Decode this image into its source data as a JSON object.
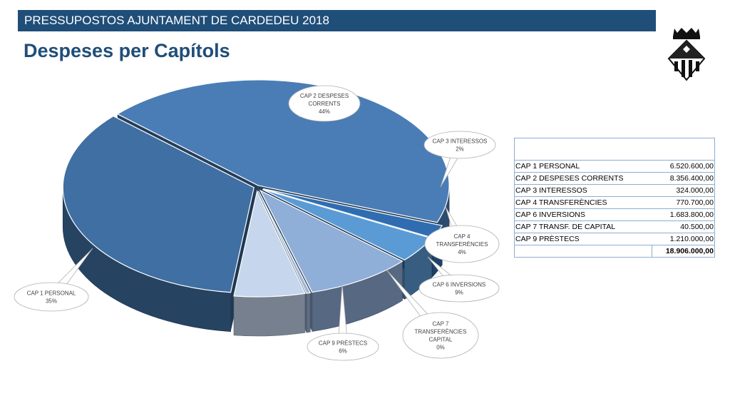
{
  "header": {
    "banner": "PRESSUPOSTOS AJUNTAMENT DE CARDEDEU 2018",
    "title": "Despeses per Capítols"
  },
  "logo": {
    "icon": "coat-of-arms-icon"
  },
  "chart_data": {
    "type": "pie",
    "title": "",
    "categories": [
      "CAP 1 PERSONAL",
      "CAP 2 DESPESES CORRENTS",
      "CAP 3 INTERESSOS",
      "CAP 4 TRANSFERÈNCIES",
      "CAP 6 INVERSIONS",
      "CAP 7 TRANSFERÈNCIES CAPITAL",
      "CAP 9 PRÈSTECS"
    ],
    "values": [
      35,
      44,
      2,
      4,
      9,
      0,
      6
    ],
    "labels": [
      {
        "line1": "CAP 1 PERSONAL",
        "line2": "",
        "line3": "",
        "pct": "35%"
      },
      {
        "line1": "CAP 2 DESPESES",
        "line2": "CORRENTS",
        "line3": "",
        "pct": "44%"
      },
      {
        "line1": "CAP 3 INTERESSOS",
        "line2": "",
        "line3": "",
        "pct": "2%"
      },
      {
        "line1": "CAP 4",
        "line2": "TRANSFERÈNCIES",
        "line3": "",
        "pct": "4%"
      },
      {
        "line1": "CAP 6 INVERSIONS",
        "line2": "",
        "line3": "",
        "pct": "9%"
      },
      {
        "line1": "CAP 7",
        "line2": "TRANSFERÈNCIES",
        "line3": "CAPITAL",
        "pct": "0%"
      },
      {
        "line1": "CAP 9 PRÈSTECS",
        "line2": "",
        "line3": "",
        "pct": "6%"
      }
    ],
    "colors": [
      "#3f6fa3",
      "#4a7db5",
      "#2f6db0",
      "#5b9bd5",
      "#8faed8",
      "#9db6d8",
      "#c6d6ec"
    ]
  },
  "table": {
    "header": "",
    "rows": [
      {
        "label": "CAP 1 PERSONAL",
        "value": "6.520.600,00"
      },
      {
        "label": "CAP 2 DESPESES CORRENTS",
        "value": "8.356.400,00"
      },
      {
        "label": "CAP 3 INTERESSOS",
        "value": "324.000,00"
      },
      {
        "label": "CAP 4 TRANSFERÈNCIES",
        "value": "770.700,00"
      },
      {
        "label": "CAP 6 INVERSIONS",
        "value": "1.683.800,00"
      },
      {
        "label": "CAP 7 TRANSF. DE CAPITAL",
        "value": "40.500,00"
      },
      {
        "label": "CAP 9 PRÈSTECS",
        "value": "1.210.000,00"
      }
    ],
    "total": "18.906.000,00"
  }
}
